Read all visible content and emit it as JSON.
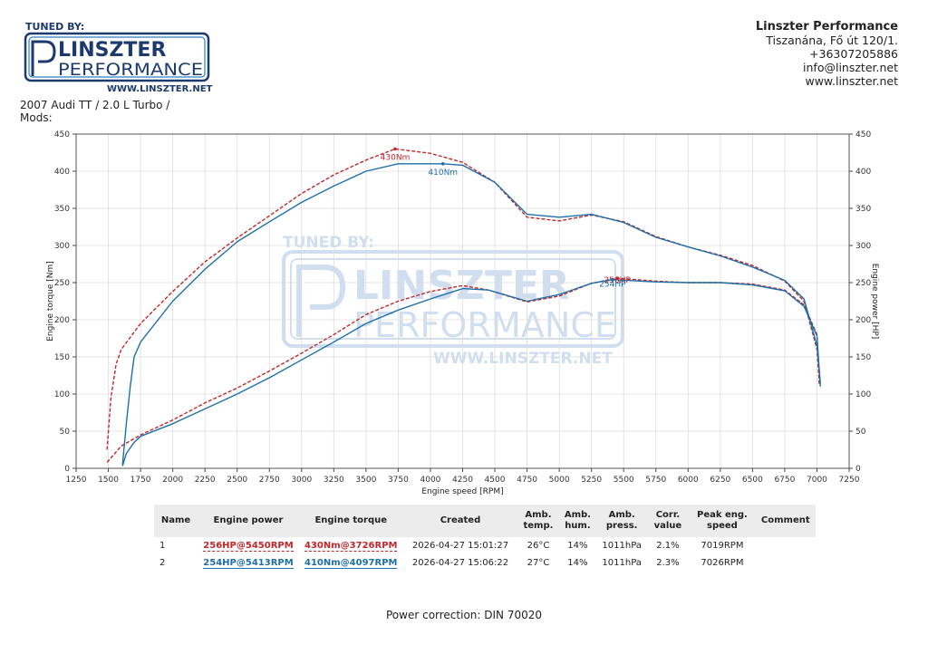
{
  "header": {
    "logo_tuned_by": "TUNED BY:",
    "logo_line1": "LINSZTER",
    "logo_line2": "PERFORMANCE",
    "logo_url": "WWW.LINSZTER.NET",
    "company_name": "Linszter Performance",
    "address": "Tiszanána, Fő út 120/1.",
    "phone": "+36307205886",
    "email": "info@linszter.net",
    "website": "www.linszter.net"
  },
  "vehicle": {
    "line1": "2007 Audi TT / 2.0 L Turbo /",
    "line2": "Mods:"
  },
  "chart_data": {
    "type": "line",
    "xlabel": "Engine speed [RPM]",
    "ylabel_left": "Engine torque [Nm]",
    "ylabel_right": "Engine power [HP]",
    "xlim": [
      1250,
      7250
    ],
    "ylim": [
      0,
      450
    ],
    "xticks": [
      1250,
      1500,
      1750,
      2000,
      2250,
      2500,
      2750,
      3000,
      3250,
      3500,
      3750,
      4000,
      4250,
      4500,
      4750,
      5000,
      5250,
      5500,
      5750,
      6000,
      6250,
      6500,
      6750,
      7000,
      7250
    ],
    "yticks": [
      0,
      50,
      100,
      150,
      200,
      250,
      300,
      350,
      400,
      450
    ],
    "grid": true,
    "series": [
      {
        "name": "Run 1",
        "color": "#c0282b",
        "dash": true,
        "torque": [
          [
            1490,
            25
          ],
          [
            1520,
            95
          ],
          [
            1560,
            140
          ],
          [
            1600,
            160
          ],
          [
            1750,
            195
          ],
          [
            2000,
            238
          ],
          [
            2250,
            278
          ],
          [
            2500,
            310
          ],
          [
            2750,
            340
          ],
          [
            3000,
            370
          ],
          [
            3250,
            395
          ],
          [
            3500,
            415
          ],
          [
            3726,
            430
          ],
          [
            4000,
            424
          ],
          [
            4250,
            412
          ],
          [
            4500,
            385
          ],
          [
            4750,
            338
          ],
          [
            5000,
            333
          ],
          [
            5250,
            341
          ],
          [
            5500,
            332
          ],
          [
            5750,
            312
          ],
          [
            6000,
            298
          ],
          [
            6250,
            287
          ],
          [
            6500,
            273
          ],
          [
            6750,
            252
          ],
          [
            6900,
            225
          ],
          [
            7000,
            160
          ],
          [
            7019,
            112
          ]
        ],
        "power": [
          [
            1490,
            8
          ],
          [
            1600,
            30
          ],
          [
            1750,
            45
          ],
          [
            2000,
            65
          ],
          [
            2250,
            88
          ],
          [
            2500,
            108
          ],
          [
            2750,
            131
          ],
          [
            3000,
            155
          ],
          [
            3250,
            180
          ],
          [
            3500,
            207
          ],
          [
            3750,
            225
          ],
          [
            4000,
            238
          ],
          [
            4250,
            246
          ],
          [
            4450,
            240
          ],
          [
            4750,
            224
          ],
          [
            5000,
            232
          ],
          [
            5250,
            249
          ],
          [
            5450,
            256
          ],
          [
            5750,
            252
          ],
          [
            6000,
            250
          ],
          [
            6250,
            250
          ],
          [
            6500,
            248
          ],
          [
            6750,
            240
          ],
          [
            6900,
            220
          ],
          [
            7000,
            180
          ],
          [
            7019,
            112
          ]
        ],
        "torque_peak_label": "430Nm",
        "torque_peak": [
          3726,
          430
        ],
        "power_peak_label": "256HP",
        "power_peak": [
          5450,
          256
        ]
      },
      {
        "name": "Run 2",
        "color": "#1f6fa8",
        "dash": false,
        "torque": [
          [
            1610,
            5
          ],
          [
            1640,
            60
          ],
          [
            1670,
            110
          ],
          [
            1700,
            150
          ],
          [
            1750,
            170
          ],
          [
            2000,
            225
          ],
          [
            2250,
            268
          ],
          [
            2500,
            305
          ],
          [
            2750,
            332
          ],
          [
            3000,
            358
          ],
          [
            3250,
            380
          ],
          [
            3500,
            400
          ],
          [
            3750,
            410
          ],
          [
            4097,
            410
          ],
          [
            4250,
            408
          ],
          [
            4500,
            385
          ],
          [
            4750,
            342
          ],
          [
            5000,
            338
          ],
          [
            5250,
            342
          ],
          [
            5500,
            331
          ],
          [
            5750,
            311
          ],
          [
            6000,
            298
          ],
          [
            6250,
            286
          ],
          [
            6500,
            271
          ],
          [
            6750,
            253
          ],
          [
            6900,
            228
          ],
          [
            7000,
            165
          ],
          [
            7026,
            115
          ]
        ],
        "power": [
          [
            1610,
            3
          ],
          [
            1640,
            20
          ],
          [
            1700,
            35
          ],
          [
            1750,
            43
          ],
          [
            2000,
            60
          ],
          [
            2250,
            80
          ],
          [
            2500,
            100
          ],
          [
            2750,
            122
          ],
          [
            3000,
            146
          ],
          [
            3250,
            170
          ],
          [
            3500,
            195
          ],
          [
            3750,
            213
          ],
          [
            4000,
            228
          ],
          [
            4250,
            242
          ],
          [
            4450,
            240
          ],
          [
            4750,
            225
          ],
          [
            5000,
            234
          ],
          [
            5250,
            249
          ],
          [
            5413,
            254
          ],
          [
            5750,
            251
          ],
          [
            6000,
            250
          ],
          [
            6250,
            250
          ],
          [
            6500,
            247
          ],
          [
            6750,
            239
          ],
          [
            6900,
            218
          ],
          [
            7000,
            178
          ],
          [
            7026,
            110
          ]
        ],
        "torque_peak_label": "410Nm",
        "torque_peak": [
          4097,
          410
        ],
        "power_peak_label": "254HP",
        "power_peak": [
          5413,
          254
        ]
      }
    ]
  },
  "watermark": {
    "tuned_by": "TUNED BY:",
    "line1": "LINSZTER",
    "line2": "PERFORMANCE",
    "url": "WWW.LINSZTER.NET"
  },
  "table": {
    "headers": {
      "name": "Name",
      "power": "Engine power",
      "torque": "Engine torque",
      "created": "Created",
      "amb_temp": "Amb. temp.",
      "amb_hum": "Amb. hum.",
      "amb_press": "Amb. press.",
      "corr": "Corr. value",
      "peak": "Peak eng. speed",
      "comment": "Comment"
    },
    "rows": [
      {
        "name": "1",
        "power": "256HP@5450RPM",
        "torque": "430Nm@3726RPM",
        "created": "2026-04-27 15:01:27",
        "temp": "26°C",
        "hum": "14%",
        "press": "1011hPa",
        "corr": "2.1%",
        "peak": "7019RPM",
        "comment": ""
      },
      {
        "name": "2",
        "power": "254HP@5413RPM",
        "torque": "410Nm@4097RPM",
        "created": "2026-04-27 15:06:22",
        "temp": "27°C",
        "hum": "14%",
        "press": "1011hPa",
        "corr": "2.3%",
        "peak": "7026RPM",
        "comment": ""
      }
    ]
  },
  "footer": {
    "power_correction": "Power correction: DIN 70020"
  }
}
